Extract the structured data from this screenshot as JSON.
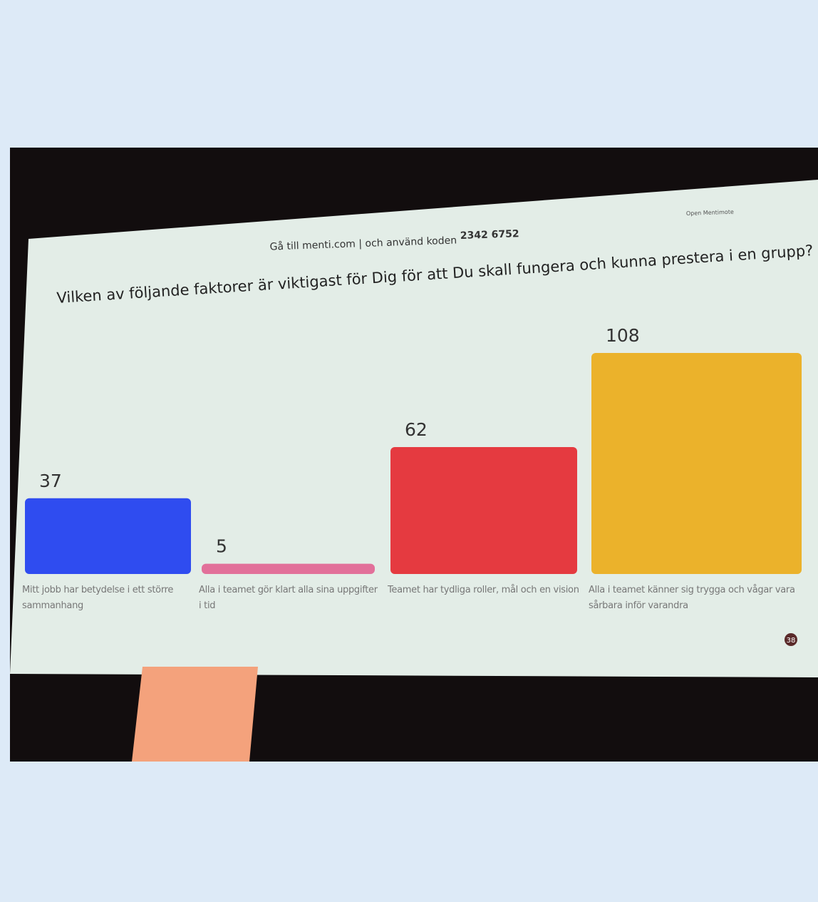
{
  "chart_data": {
    "type": "bar",
    "header": "Gå till menti.com | och använd koden",
    "code": "2342 6752",
    "remote": "Open Mentimote",
    "title": "Vilken av följande faktorer är viktigast för Dig för att Du skall fungera och kunna prestera i en grupp?",
    "categories": [
      "Mitt jobb har betydelse i ett större sammanhang",
      "Alla i teamet gör klart alla sina uppgifter i tid",
      "Teamet har tydliga roller, mål och en vision",
      "Alla i teamet känner sig trygga och vågar vara sårbara inför varandra"
    ],
    "values": [
      37,
      5,
      62,
      108
    ],
    "colors": [
      "#2f4cf0",
      "#e2709a",
      "#e53a40",
      "#ebb22b"
    ],
    "participants": "38"
  }
}
